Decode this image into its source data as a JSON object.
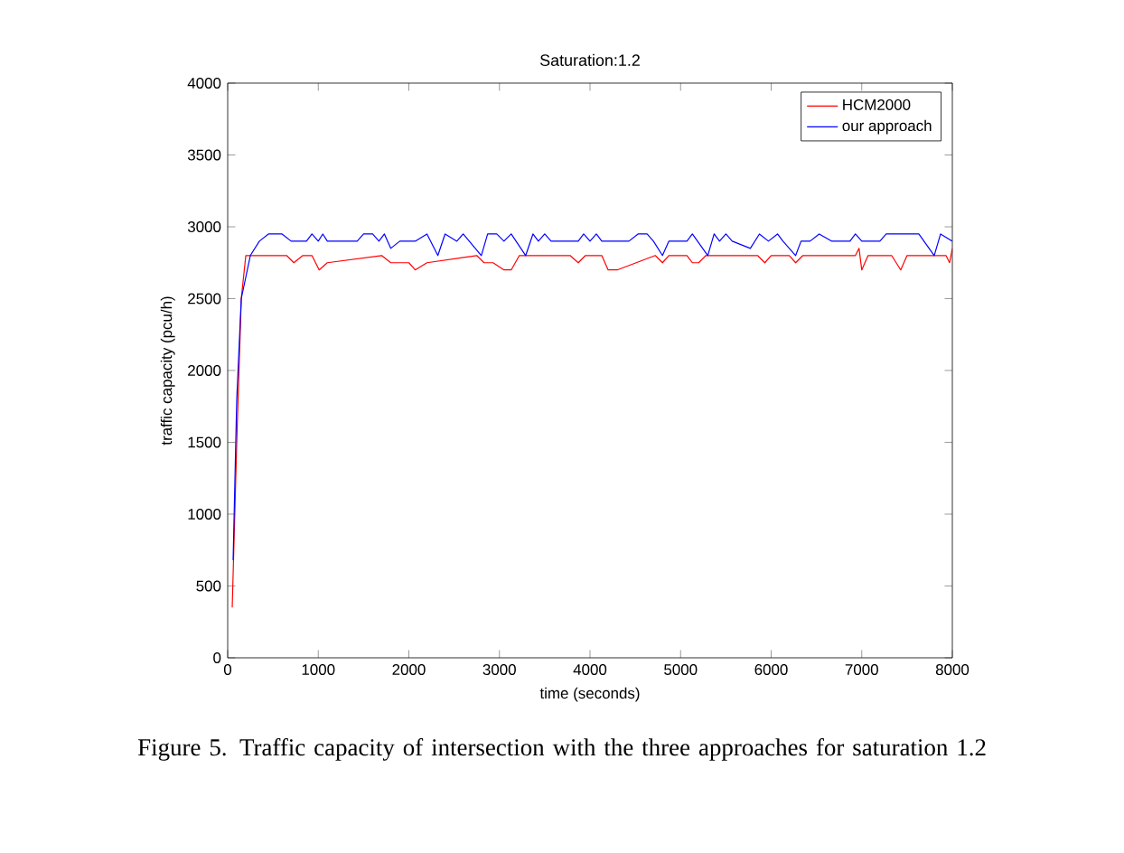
{
  "chart_data": {
    "type": "line",
    "title": "Saturation:1.2",
    "xlabel": "time (seconds)",
    "ylabel": "traffic capacity (pcu/h)",
    "annotations": [
      "Figure 5. Traffic capacity of intersection with the three approaches for saturation 1.2"
    ],
    "xlim": [
      0,
      8000
    ],
    "ylim": [
      0,
      4000
    ],
    "xticks": [
      0,
      1000,
      2000,
      3000,
      4000,
      5000,
      6000,
      7000,
      8000
    ],
    "yticks": [
      0,
      500,
      1000,
      1500,
      2000,
      2500,
      3000,
      3500,
      4000
    ],
    "grid": false,
    "legend": "top right",
    "marker": "none",
    "line_style": "solid",
    "series": [
      {
        "name": "HCM2000",
        "color": "#ff0000",
        "x": [
          50,
          100,
          150,
          200,
          650,
          730,
          830,
          930,
          1010,
          1100,
          1700,
          1800,
          1900,
          2000,
          2070,
          2200,
          2750,
          2830,
          2930,
          3050,
          3130,
          3220,
          3780,
          3870,
          3950,
          4130,
          4200,
          4300,
          4720,
          4800,
          4870,
          5070,
          5130,
          5200,
          5280,
          5850,
          5930,
          6000,
          6200,
          6270,
          6350,
          6930,
          6970,
          7000,
          7070,
          7330,
          7430,
          7500,
          7930,
          7970,
          8000
        ],
        "values": [
          350,
          1500,
          2500,
          2800,
          2800,
          2750,
          2800,
          2800,
          2700,
          2750,
          2800,
          2750,
          2750,
          2750,
          2700,
          2750,
          2800,
          2750,
          2750,
          2700,
          2700,
          2800,
          2800,
          2750,
          2800,
          2800,
          2700,
          2700,
          2800,
          2750,
          2800,
          2800,
          2750,
          2750,
          2800,
          2800,
          2750,
          2800,
          2800,
          2750,
          2800,
          2800,
          2850,
          2700,
          2800,
          2800,
          2700,
          2800,
          2800,
          2750,
          2850
        ]
      },
      {
        "name": "our approach",
        "color": "#0000ff",
        "x": [
          60,
          100,
          150,
          250,
          350,
          450,
          600,
          700,
          870,
          930,
          1000,
          1050,
          1100,
          1430,
          1500,
          1600,
          1670,
          1730,
          1800,
          1900,
          2070,
          2200,
          2320,
          2400,
          2530,
          2600,
          2800,
          2870,
          2970,
          3050,
          3130,
          3290,
          3370,
          3430,
          3500,
          3570,
          3870,
          3930,
          4000,
          4070,
          4130,
          4430,
          4530,
          4630,
          4700,
          4800,
          4870,
          5070,
          5130,
          5300,
          5370,
          5430,
          5500,
          5570,
          5770,
          5870,
          5970,
          6070,
          6130,
          6270,
          6330,
          6430,
          6530,
          6670,
          6870,
          6930,
          7000,
          7200,
          7270,
          7530,
          7630,
          7800,
          7870,
          8000
        ],
        "values": [
          680,
          1800,
          2500,
          2800,
          2900,
          2950,
          2950,
          2900,
          2900,
          2950,
          2900,
          2950,
          2900,
          2900,
          2950,
          2950,
          2900,
          2950,
          2850,
          2900,
          2900,
          2950,
          2800,
          2950,
          2900,
          2950,
          2800,
          2950,
          2950,
          2900,
          2950,
          2800,
          2950,
          2900,
          2950,
          2900,
          2900,
          2950,
          2900,
          2950,
          2900,
          2900,
          2950,
          2950,
          2900,
          2800,
          2900,
          2900,
          2950,
          2800,
          2950,
          2900,
          2950,
          2900,
          2850,
          2950,
          2900,
          2950,
          2900,
          2800,
          2900,
          2900,
          2950,
          2900,
          2900,
          2950,
          2900,
          2900,
          2950,
          2950,
          2950,
          2800,
          2950,
          2900
        ]
      }
    ]
  }
}
